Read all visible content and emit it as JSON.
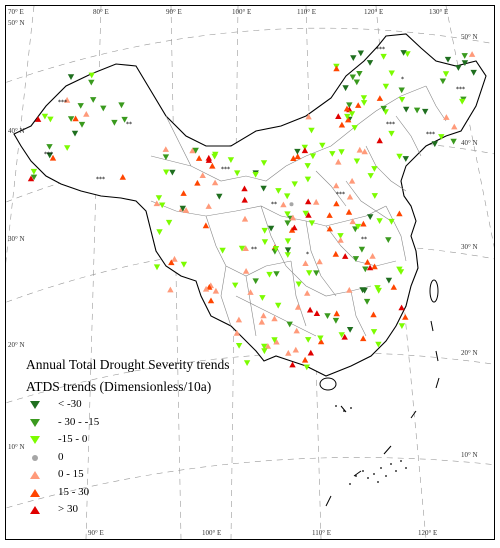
{
  "map": {
    "legend_title": "Annual Total Drought Severity trends",
    "legend_subtitle": "ATDS trends (Dimensionless/10a)",
    "legend_items": [
      {
        "label": "< -30",
        "symbol": "triangle-down",
        "color": "#1f6f1f"
      },
      {
        "label": "- 30 - -15",
        "symbol": "triangle-down",
        "color": "#3a9a1e"
      },
      {
        "label": "-15 - 0",
        "symbol": "triangle-down",
        "color": "#7CFC00"
      },
      {
        "label": "0",
        "symbol": "circle",
        "color": "#a6a6a6"
      },
      {
        "label": "0 - 15",
        "symbol": "triangle-up",
        "color": "#ff9a7a"
      },
      {
        "label": "15 - 30",
        "symbol": "triangle-up",
        "color": "#ff4500"
      },
      {
        "label": "> 30",
        "symbol": "triangle-up",
        "color": "#e00000"
      }
    ],
    "lat_labels_left": [
      "50° N",
      "40° N",
      "30° N",
      "20° N",
      "10° N"
    ],
    "lat_labels_right": [
      "50° N",
      "40° N",
      "30° N",
      "20° N",
      "10° N"
    ],
    "lon_labels_top": [
      "70° E",
      "80° E",
      "90° E",
      "100° E",
      "110° E",
      "120° E",
      "130° E"
    ],
    "lon_labels_bottom": [
      "90° E",
      "100° E",
      "110° E",
      "120° E"
    ],
    "significance_marks": [
      "*",
      "**",
      "***"
    ]
  }
}
